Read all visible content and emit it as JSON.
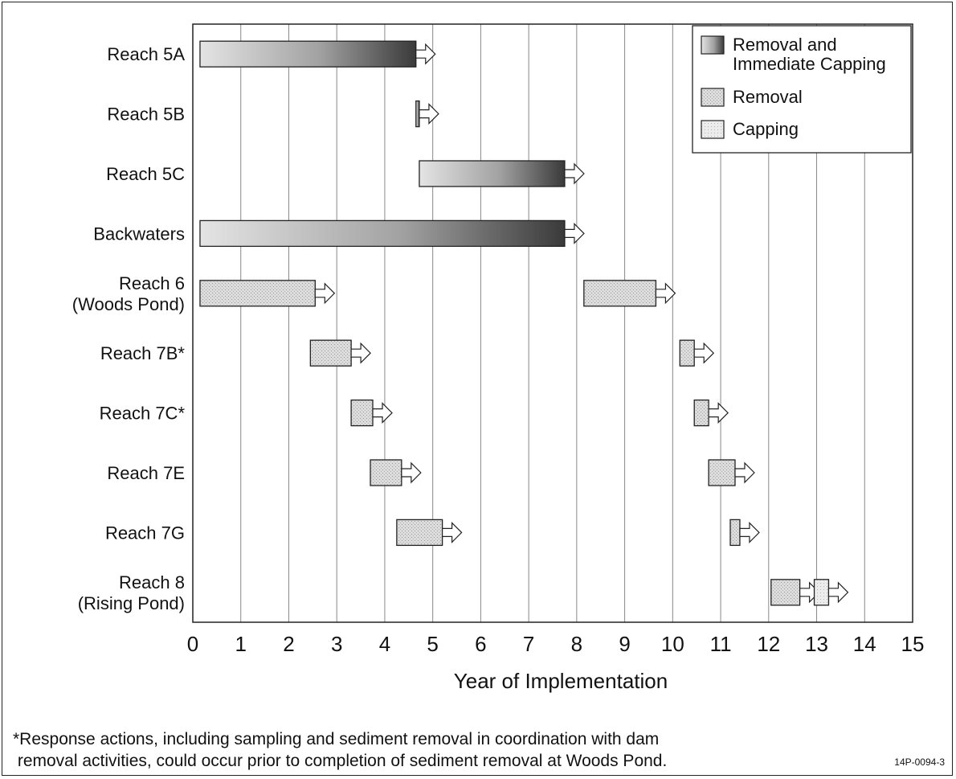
{
  "chart_data": {
    "type": "gantt",
    "xlabel": "Year of Implementation",
    "xlim": [
      0,
      15
    ],
    "x_ticks": [
      "0",
      "1",
      "2",
      "3",
      "4",
      "5",
      "6",
      "7",
      "8",
      "9",
      "10",
      "11",
      "12",
      "13",
      "14",
      "15"
    ],
    "grid": "vertical",
    "legend_position": "top-right",
    "legend": [
      {
        "name": "Removal and Immediate Capping",
        "lines": [
          "Removal and",
          "Immediate Capping"
        ],
        "key": "rc"
      },
      {
        "name": "Removal",
        "lines": [
          "Removal"
        ],
        "key": "r"
      },
      {
        "name": "Capping",
        "lines": [
          "Capping"
        ],
        "key": "c"
      }
    ],
    "categories": [
      {
        "label": [
          "Reach 5A"
        ],
        "segments": [
          {
            "series": "rc",
            "start": 0.15,
            "end": 4.65
          }
        ]
      },
      {
        "label": [
          "Reach 5B"
        ],
        "segments": [
          {
            "series": "rc",
            "start": 4.65,
            "end": 4.72
          }
        ]
      },
      {
        "label": [
          "Reach 5C"
        ],
        "segments": [
          {
            "series": "rc",
            "start": 4.72,
            "end": 7.75
          }
        ]
      },
      {
        "label": [
          "Backwaters"
        ],
        "segments": [
          {
            "series": "rc",
            "start": 0.15,
            "end": 7.75
          }
        ]
      },
      {
        "label": [
          "Reach 6",
          "(Woods Pond)"
        ],
        "segments": [
          {
            "series": "r",
            "start": 0.15,
            "end": 2.55
          },
          {
            "series": "r",
            "start": 8.15,
            "end": 9.65
          }
        ]
      },
      {
        "label": [
          "Reach 7B*"
        ],
        "segments": [
          {
            "series": "r",
            "start": 2.45,
            "end": 3.3
          },
          {
            "series": "r",
            "start": 10.15,
            "end": 10.45
          }
        ]
      },
      {
        "label": [
          "Reach 7C*"
        ],
        "segments": [
          {
            "series": "r",
            "start": 3.3,
            "end": 3.75
          },
          {
            "series": "r",
            "start": 10.45,
            "end": 10.75
          }
        ]
      },
      {
        "label": [
          "Reach 7E"
        ],
        "segments": [
          {
            "series": "r",
            "start": 3.7,
            "end": 4.35
          },
          {
            "series": "r",
            "start": 10.75,
            "end": 11.3
          }
        ]
      },
      {
        "label": [
          "Reach 7G"
        ],
        "segments": [
          {
            "series": "r",
            "start": 4.25,
            "end": 5.2
          },
          {
            "series": "r",
            "start": 11.2,
            "end": 11.4
          }
        ]
      },
      {
        "label": [
          "Reach 8",
          "(Rising Pond)"
        ],
        "segments": [
          {
            "series": "r",
            "start": 12.05,
            "end": 12.65
          },
          {
            "series": "c",
            "start": 12.95,
            "end": 13.25
          }
        ]
      }
    ]
  },
  "footnote": "*Response actions, including sampling and sediment removal in coordination with dam\n removal activities, could occur prior to completion of sediment removal at Woods Pond.",
  "figure_id": "14P-0094-3"
}
